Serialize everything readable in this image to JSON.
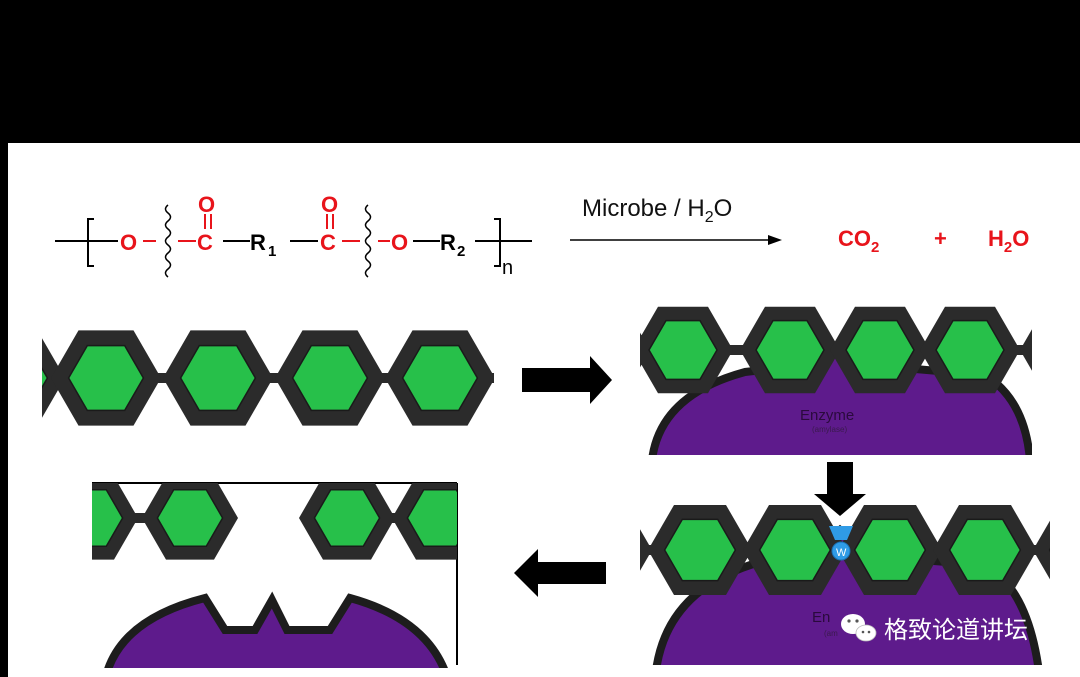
{
  "reaction": {
    "reagent": "Microbe / H",
    "reagent_sub": "2",
    "reagent_tail": "O",
    "product1": "CO",
    "product1_sub": "2",
    "plus": "+",
    "product2_pre": "H",
    "product2_sub": "2",
    "product2_tail": "O",
    "polymer": {
      "o1": "O",
      "c1": "C",
      "o_dbl1": "O",
      "r1": "R",
      "r1_sub": "1",
      "c2": "C",
      "o_dbl2": "O",
      "o2": "O",
      "r2": "R",
      "r2_sub": "2",
      "n": "n"
    }
  },
  "enzyme": {
    "label": "Enzyme",
    "sublabel": "(amylase)",
    "label_partial": "En",
    "sublabel_partial": "(am"
  },
  "water_label": "W",
  "watermark": "格致论道讲坛",
  "colors": {
    "ester_red": "#e8141b",
    "hexagon_green": "#27c04a",
    "hexagon_frame": "#2b2b2b",
    "enzyme_purple": "#5e1b8c",
    "water_blue": "#2f9be6"
  }
}
